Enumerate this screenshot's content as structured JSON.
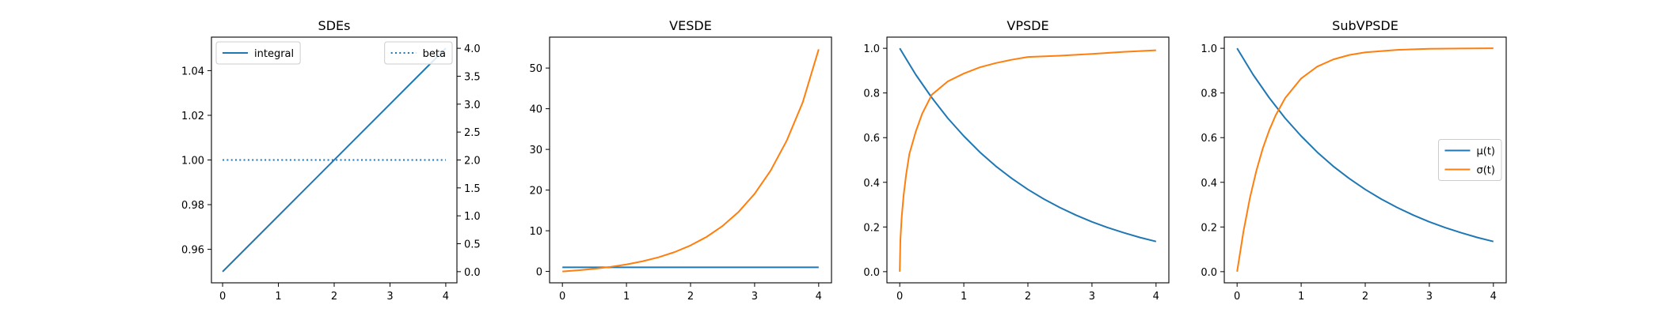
{
  "colors": {
    "blue": "#1f77b4",
    "orange": "#ff7f0e",
    "axis": "#000000",
    "legend_border": "#cccccc"
  },
  "chart_data": [
    {
      "type": "line",
      "title": "SDEs",
      "xlabel": "",
      "ylabel": "",
      "xlim": [
        -0.2,
        4.2
      ],
      "ylim": [
        0.945,
        1.055
      ],
      "xticks": [
        0,
        1,
        2,
        3,
        4
      ],
      "xtick_labels": [
        "0",
        "1",
        "2",
        "3",
        "4"
      ],
      "yticks": [
        0.96,
        0.98,
        1.0,
        1.02,
        1.04
      ],
      "ytick_labels": [
        "0.96",
        "0.98",
        "1.00",
        "1.02",
        "1.04"
      ],
      "twin_y": {
        "ylim": [
          -0.2,
          4.2
        ],
        "yticks": [
          0.0,
          0.5,
          1.0,
          1.5,
          2.0,
          2.5,
          3.0,
          3.5,
          4.0
        ],
        "ytick_labels": [
          "0.0",
          "0.5",
          "1.0",
          "1.5",
          "2.0",
          "2.5",
          "3.0",
          "3.5",
          "4.0"
        ]
      },
      "series": [
        {
          "name": "integral",
          "axis": "left",
          "style": "solid",
          "color": "#1f77b4",
          "x": [
            0,
            4
          ],
          "y": [
            0.95,
            1.05
          ]
        },
        {
          "name": "beta",
          "axis": "right",
          "style": "dotted",
          "color": "#1f77b4",
          "x": [
            0,
            4
          ],
          "y": [
            2.0,
            2.0
          ]
        }
      ],
      "legends": [
        {
          "position": "upper left",
          "entries": [
            "integral"
          ]
        },
        {
          "position": "upper right",
          "entries": [
            "beta"
          ]
        }
      ]
    },
    {
      "type": "line",
      "title": "VESDE",
      "xlabel": "",
      "ylabel": "",
      "xlim": [
        -0.2,
        4.2
      ],
      "ylim": [
        -2.8,
        57.6
      ],
      "xticks": [
        0,
        1,
        2,
        3,
        4
      ],
      "xtick_labels": [
        "0",
        "1",
        "2",
        "3",
        "4"
      ],
      "yticks": [
        0,
        10,
        20,
        30,
        40,
        50
      ],
      "ytick_labels": [
        "0",
        "10",
        "20",
        "30",
        "40",
        "50"
      ],
      "series": [
        {
          "style": "solid",
          "color": "#1f77b4",
          "x": [
            0,
            0.5,
            1,
            1.5,
            2,
            2.5,
            3,
            3.5,
            4
          ],
          "y": [
            1,
            1,
            1,
            1,
            1,
            1,
            1,
            1,
            1
          ]
        },
        {
          "style": "solid",
          "color": "#ff7f0e",
          "x": [
            0,
            0.25,
            0.5,
            0.75,
            1,
            1.25,
            1.5,
            1.75,
            2,
            2.25,
            2.5,
            2.75,
            3,
            3.25,
            3.5,
            3.75,
            4
          ],
          "y": [
            0,
            0.28,
            0.65,
            1.12,
            1.72,
            2.49,
            3.48,
            4.75,
            6.39,
            8.49,
            11.18,
            14.64,
            19.09,
            24.79,
            32.12,
            41.52,
            54.6
          ]
        }
      ]
    },
    {
      "type": "line",
      "title": "VPSDE",
      "xlabel": "",
      "ylabel": "",
      "xlim": [
        -0.2,
        4.2
      ],
      "ylim": [
        -0.05,
        1.05
      ],
      "xticks": [
        0,
        1,
        2,
        3,
        4
      ],
      "xtick_labels": [
        "0",
        "1",
        "2",
        "3",
        "4"
      ],
      "yticks": [
        0.0,
        0.2,
        0.4,
        0.6,
        0.8,
        1.0
      ],
      "ytick_labels": [
        "0.0",
        "0.2",
        "0.4",
        "0.6",
        "0.8",
        "1.0"
      ],
      "series": [
        {
          "name": "μ(t)",
          "style": "solid",
          "color": "#1f77b4",
          "x": [
            0,
            0.25,
            0.5,
            0.75,
            1,
            1.25,
            1.5,
            1.75,
            2,
            2.25,
            2.5,
            2.75,
            3,
            3.25,
            3.5,
            3.75,
            4
          ],
          "y": [
            1.0,
            0.882,
            0.779,
            0.687,
            0.607,
            0.535,
            0.472,
            0.417,
            0.368,
            0.325,
            0.287,
            0.253,
            0.223,
            0.197,
            0.174,
            0.153,
            0.135
          ]
        },
        {
          "name": "σ(t)",
          "style": "solid",
          "color": "#ff7f0e",
          "x": [
            0,
            0.01,
            0.03,
            0.06,
            0.1,
            0.15,
            0.25,
            0.35,
            0.5,
            0.75,
            1,
            1.25,
            1.5,
            1.75,
            2,
            2.5,
            3,
            3.5,
            4
          ],
          "y": [
            0.0,
            0.141,
            0.243,
            0.341,
            0.435,
            0.527,
            0.627,
            0.707,
            0.792,
            0.852,
            0.887,
            0.915,
            0.934,
            0.949,
            0.961,
            0.967,
            0.975,
            0.984,
            0.991
          ]
        }
      ]
    },
    {
      "type": "line",
      "title": "SubVPSDE",
      "xlabel": "",
      "ylabel": "",
      "xlim": [
        -0.2,
        4.2
      ],
      "ylim": [
        -0.05,
        1.05
      ],
      "xticks": [
        0,
        1,
        2,
        3,
        4
      ],
      "xtick_labels": [
        "0",
        "1",
        "2",
        "3",
        "4"
      ],
      "yticks": [
        0.0,
        0.2,
        0.4,
        0.6,
        0.8,
        1.0
      ],
      "ytick_labels": [
        "0.0",
        "0.2",
        "0.4",
        "0.6",
        "0.8",
        "1.0"
      ],
      "series": [
        {
          "name": "μ(t)",
          "style": "solid",
          "color": "#1f77b4",
          "x": [
            0,
            0.25,
            0.5,
            0.75,
            1,
            1.25,
            1.5,
            1.75,
            2,
            2.25,
            2.5,
            2.75,
            3,
            3.25,
            3.5,
            3.75,
            4
          ],
          "y": [
            1.0,
            0.882,
            0.779,
            0.687,
            0.607,
            0.535,
            0.472,
            0.417,
            0.368,
            0.325,
            0.287,
            0.253,
            0.223,
            0.197,
            0.174,
            0.153,
            0.135
          ]
        },
        {
          "name": "σ(t)",
          "style": "solid",
          "color": "#ff7f0e",
          "x": [
            0,
            0.1,
            0.2,
            0.3,
            0.4,
            0.5,
            0.6,
            0.75,
            1,
            1.25,
            1.5,
            1.75,
            2,
            2.5,
            3,
            3.5,
            4
          ],
          "y": [
            0.0,
            0.181,
            0.33,
            0.451,
            0.551,
            0.632,
            0.699,
            0.777,
            0.865,
            0.918,
            0.95,
            0.97,
            0.982,
            0.993,
            0.998,
            0.999,
            1.0
          ]
        }
      ],
      "legends": [
        {
          "position": "center right",
          "entries": [
            "μ(t)",
            "σ(t)"
          ]
        }
      ]
    }
  ]
}
